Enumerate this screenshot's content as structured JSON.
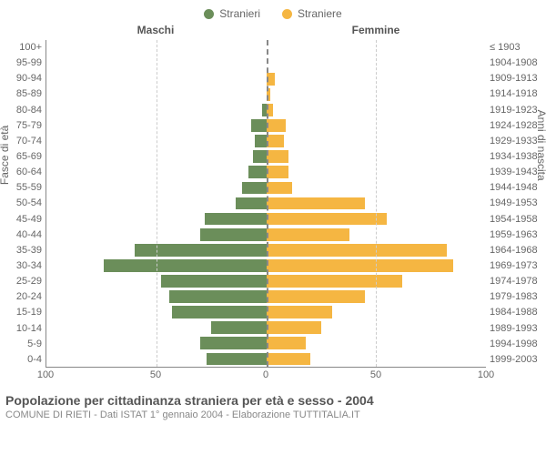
{
  "legend": {
    "male": {
      "label": "Stranieri",
      "color": "#6b8e5a"
    },
    "female": {
      "label": "Straniere",
      "color": "#f5b642"
    }
  },
  "chart": {
    "type": "population-pyramid",
    "male_header": "Maschi",
    "female_header": "Femmine",
    "left_axis_title": "Fasce di età",
    "right_axis_title": "Anni di nascita",
    "xmax": 100,
    "x_ticks": [
      100,
      50,
      0,
      50,
      100
    ],
    "grid_color": "#cccccc",
    "axis_color": "#888888",
    "background_color": "#ffffff",
    "bar_color_male": "#6b8e5a",
    "bar_color_female": "#f5b642",
    "rows": [
      {
        "age": "100+",
        "birth": "≤ 1903",
        "m": 0,
        "f": 0
      },
      {
        "age": "95-99",
        "birth": "1904-1908",
        "m": 0,
        "f": 0
      },
      {
        "age": "90-94",
        "birth": "1909-1913",
        "m": 0,
        "f": 4
      },
      {
        "age": "85-89",
        "birth": "1914-1918",
        "m": 0,
        "f": 2
      },
      {
        "age": "80-84",
        "birth": "1919-1923",
        "m": 2,
        "f": 3
      },
      {
        "age": "75-79",
        "birth": "1924-1928",
        "m": 7,
        "f": 9
      },
      {
        "age": "70-74",
        "birth": "1929-1933",
        "m": 5,
        "f": 8
      },
      {
        "age": "65-69",
        "birth": "1934-1938",
        "m": 6,
        "f": 10
      },
      {
        "age": "60-64",
        "birth": "1939-1943",
        "m": 8,
        "f": 10
      },
      {
        "age": "55-59",
        "birth": "1944-1948",
        "m": 11,
        "f": 12
      },
      {
        "age": "50-54",
        "birth": "1949-1953",
        "m": 14,
        "f": 45
      },
      {
        "age": "45-49",
        "birth": "1954-1958",
        "m": 28,
        "f": 55
      },
      {
        "age": "40-44",
        "birth": "1959-1963",
        "m": 30,
        "f": 38
      },
      {
        "age": "35-39",
        "birth": "1964-1968",
        "m": 60,
        "f": 82
      },
      {
        "age": "30-34",
        "birth": "1969-1973",
        "m": 74,
        "f": 85
      },
      {
        "age": "25-29",
        "birth": "1974-1978",
        "m": 48,
        "f": 62
      },
      {
        "age": "20-24",
        "birth": "1979-1983",
        "m": 44,
        "f": 45
      },
      {
        "age": "15-19",
        "birth": "1984-1988",
        "m": 43,
        "f": 30
      },
      {
        "age": "10-14",
        "birth": "1989-1993",
        "m": 25,
        "f": 25
      },
      {
        "age": "5-9",
        "birth": "1994-1998",
        "m": 30,
        "f": 18
      },
      {
        "age": "0-4",
        "birth": "1999-2003",
        "m": 27,
        "f": 20
      }
    ]
  },
  "footer": {
    "title": "Popolazione per cittadinanza straniera per età e sesso - 2004",
    "subtitle": "COMUNE DI RIETI - Dati ISTAT 1° gennaio 2004 - Elaborazione TUTTITALIA.IT"
  }
}
